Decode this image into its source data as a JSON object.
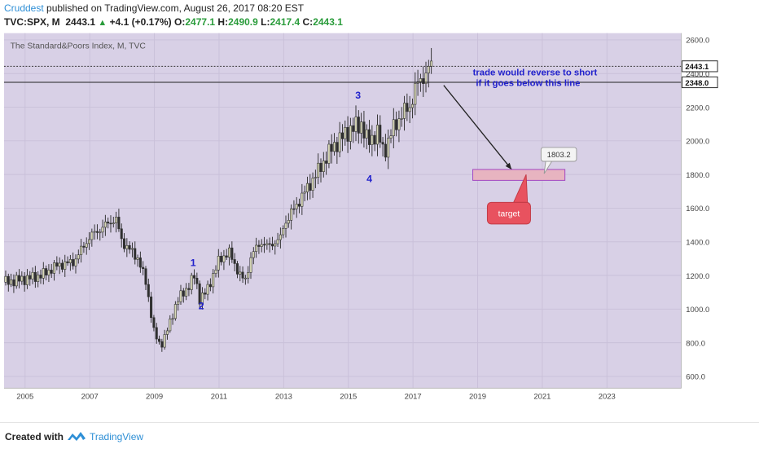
{
  "header": {
    "author": "Cruddest",
    "published_text": " published on TradingView.com, August 26, 2017 08:20 EST",
    "symbol": "TVC:SPX, M",
    "last": "2443.1",
    "change": "+4.1 (+0.17%)",
    "open_label": "O:",
    "open": "2477.1",
    "high_label": "H:",
    "high": "2490.9",
    "low_label": "L:",
    "low": "2417.4",
    "close_label": "C:",
    "close": "2443.1"
  },
  "chart_title": "The Standard&Poors Index, M, TVC",
  "footer": {
    "created_with": "Created with",
    "brand": "TradingView"
  },
  "colors": {
    "background": "#d8d0e6",
    "up": "#2f2f2f",
    "down": "#d9d9b8",
    "accent": "#2e8fd6",
    "wave_label": "#2222cc",
    "target_box": "#e7b4c0",
    "callout": "#e8525f"
  },
  "chart_data": {
    "type": "candlestick",
    "title": "The Standard&Poors Index, M, TVC",
    "x_ticks": [
      "2005",
      "2007",
      "2009",
      "2011",
      "2013",
      "2015",
      "2017",
      "2019",
      "2021",
      "2023"
    ],
    "y_ticks": [
      "2600.0",
      "2400.0",
      "2200.0",
      "2000.0",
      "1800.0",
      "1600.0",
      "1400.0",
      "1200.0",
      "1000.0",
      "800.0",
      "600.0"
    ],
    "ylim": [
      530,
      2640
    ],
    "xlim": [
      2004.35,
      2025.3
    ],
    "price_labels": [
      {
        "value": 2443.1,
        "text": "2443.1"
      },
      {
        "value": 2348.0,
        "text": "2348.0"
      }
    ],
    "horizontal_line": {
      "value": 2348.0
    },
    "wave_labels": [
      {
        "label": "1",
        "year": 2010.2,
        "price": 1255
      },
      {
        "label": "2",
        "year": 2010.45,
        "price": 1000
      },
      {
        "label": "3",
        "year": 2015.3,
        "price": 2250
      },
      {
        "label": "4",
        "year": 2015.65,
        "price": 1755
      }
    ],
    "annotation_text": [
      "trade would reverse to short",
      "if it goes below this line"
    ],
    "target_box": {
      "x0": 2018.85,
      "x1": 2021.7,
      "y0": 1765,
      "y1": 1830
    },
    "target_label": "target",
    "price_flag": "1803.2",
    "anchors": [
      [
        2004.4,
        1160
      ],
      [
        2005.0,
        1180
      ],
      [
        2005.5,
        1200
      ],
      [
        2006.0,
        1260
      ],
      [
        2006.5,
        1280
      ],
      [
        2007.0,
        1430
      ],
      [
        2007.5,
        1500
      ],
      [
        2007.8,
        1540
      ],
      [
        2008.0,
        1400
      ],
      [
        2008.5,
        1300
      ],
      [
        2008.75,
        1150
      ],
      [
        2009.0,
        850
      ],
      [
        2009.2,
        780
      ],
      [
        2009.45,
        900
      ],
      [
        2009.7,
        1050
      ],
      [
        2010.0,
        1120
      ],
      [
        2010.25,
        1200
      ],
      [
        2010.4,
        1060
      ],
      [
        2010.6,
        1100
      ],
      [
        2011.0,
        1290
      ],
      [
        2011.3,
        1340
      ],
      [
        2011.6,
        1220
      ],
      [
        2011.8,
        1160
      ],
      [
        2012.0,
        1320
      ],
      [
        2012.3,
        1400
      ],
      [
        2012.5,
        1370
      ],
      [
        2012.9,
        1420
      ],
      [
        2013.0,
        1500
      ],
      [
        2013.5,
        1650
      ],
      [
        2014.0,
        1800
      ],
      [
        2014.5,
        1960
      ],
      [
        2015.0,
        2060
      ],
      [
        2015.4,
        2100
      ],
      [
        2015.6,
        1990
      ],
      [
        2015.9,
        2050
      ],
      [
        2016.1,
        1930
      ],
      [
        2016.4,
        2080
      ],
      [
        2016.7,
        2170
      ],
      [
        2016.9,
        2200
      ],
      [
        2017.1,
        2330
      ],
      [
        2017.4,
        2400
      ],
      [
        2017.6,
        2460
      ]
    ]
  }
}
